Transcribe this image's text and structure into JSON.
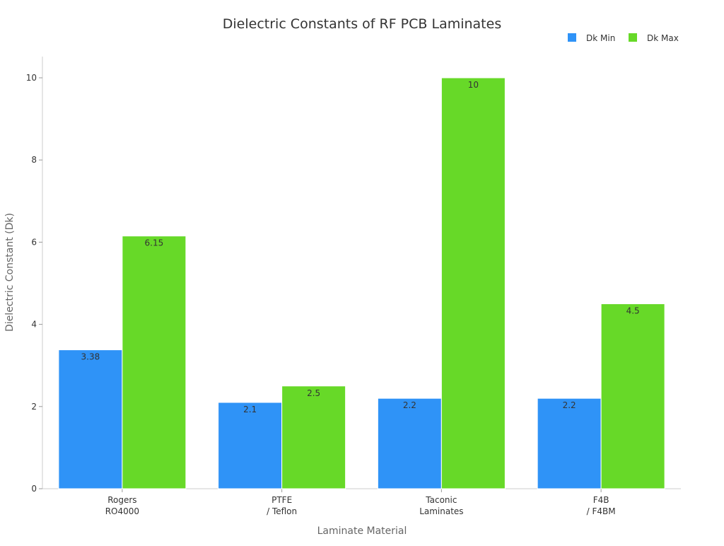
{
  "chart_data": {
    "type": "bar",
    "title": "Dielectric Constants of RF PCB Laminates",
    "xlabel": "Laminate Material",
    "ylabel": "Dielectric Constant (Dk)",
    "categories": [
      [
        "Rogers",
        "RO4000"
      ],
      [
        "PTFE",
        "/ Teflon"
      ],
      [
        "Taconic",
        "Laminates"
      ],
      [
        "F4B",
        "/ F4BM"
      ]
    ],
    "series": [
      {
        "name": "Dk Min",
        "color": "#2f93f7",
        "values": [
          3.38,
          2.1,
          2.2,
          2.2
        ]
      },
      {
        "name": "Dk Max",
        "color": "#67d928",
        "values": [
          6.15,
          2.5,
          10,
          4.5
        ]
      }
    ],
    "ylim": [
      0,
      10.5
    ],
    "yticks": [
      0,
      2,
      4,
      6,
      8,
      10
    ],
    "grid": false,
    "legend": "top-right"
  }
}
